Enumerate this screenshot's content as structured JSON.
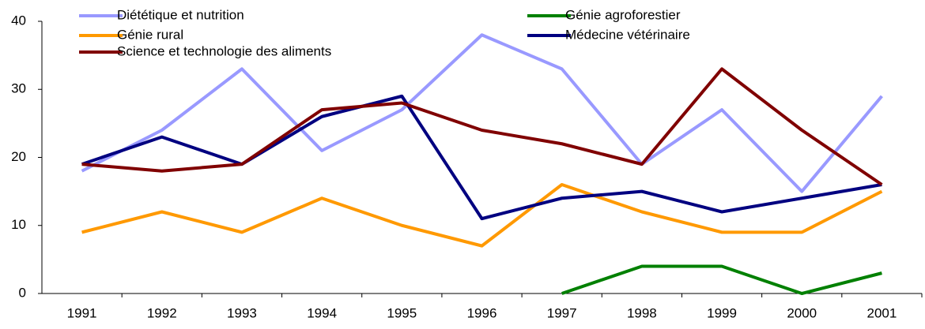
{
  "chart_data": {
    "type": "line",
    "categories": [
      "1991",
      "1992",
      "1993",
      "1994",
      "1995",
      "1996",
      "1997",
      "1998",
      "1999",
      "2000",
      "2001"
    ],
    "series": [
      {
        "name": "Diététique et nutrition",
        "color": "#9999ff",
        "values": [
          18,
          24,
          33,
          21,
          27,
          38,
          33,
          19,
          27,
          15,
          29
        ]
      },
      {
        "name": "Génie agroforestier",
        "color": "#008000",
        "values": [
          null,
          null,
          null,
          null,
          null,
          null,
          0,
          4,
          4,
          0,
          3
        ]
      },
      {
        "name": "Génie rural",
        "color": "#ff9900",
        "values": [
          9,
          12,
          9,
          14,
          10,
          7,
          16,
          12,
          9,
          9,
          15
        ]
      },
      {
        "name": "Médecine vétérinaire",
        "color": "#000080",
        "values": [
          19,
          23,
          19,
          26,
          29,
          11,
          14,
          15,
          12,
          14,
          16
        ]
      },
      {
        "name": "Science et technologie des aliments",
        "color": "#800000",
        "values": [
          19,
          18,
          19,
          27,
          28,
          24,
          22,
          19,
          33,
          24,
          16
        ]
      }
    ],
    "ylim": [
      0,
      40
    ],
    "yticks": [
      0,
      10,
      20,
      30,
      40
    ],
    "legend": "top"
  }
}
